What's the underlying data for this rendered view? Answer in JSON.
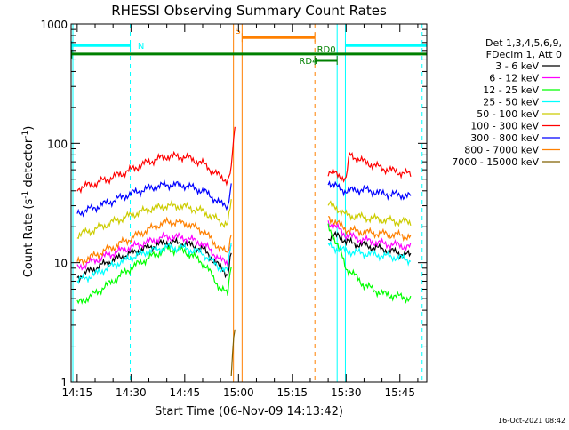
{
  "chart_data": {
    "type": "line",
    "title": "RHESSI Observing Summary Count Rates",
    "xlabel": "Start Time (06-Nov-09 14:13:42)",
    "ylabel_main": "Count Rate (s",
    "ylabel_sup1": "-1",
    "ylabel_mid": " detector",
    "ylabel_sup2": "-1",
    "ylabel_end": ")",
    "yscale": "log",
    "ylim": [
      1,
      1000
    ],
    "xlim_minutes": [
      -1.7,
      97.5
    ],
    "x_ticks": [
      {
        "label": "14:15",
        "min": 0
      },
      {
        "label": "14:30",
        "min": 15
      },
      {
        "label": "14:45",
        "min": 30
      },
      {
        "label": "15:00",
        "min": 45
      },
      {
        "label": "15:15",
        "min": 60
      },
      {
        "label": "15:30",
        "min": 75
      },
      {
        "label": "15:45",
        "min": 90
      }
    ],
    "y_ticks": [
      {
        "label": "1000",
        "value": 1000
      },
      {
        "label": "100",
        "value": 100
      },
      {
        "label": "10",
        "value": 10
      },
      {
        "label": "1",
        "value": 1
      }
    ],
    "legend_header": [
      "Det 1,3,4,5,6,9,",
      "FDecim 1, Att 0"
    ],
    "series": [
      {
        "name": "3 - 6 keV",
        "color": "#000000",
        "x": [
          0,
          5,
          10,
          15,
          20,
          25,
          30,
          35,
          38,
          40,
          42,
          43,
          63,
          70,
          73,
          75,
          80,
          85,
          90,
          93
        ],
        "values": [
          7.5,
          9,
          10.5,
          12,
          13.5,
          14.8,
          14.5,
          13,
          10.5,
          9,
          8,
          12,
          null,
          16,
          17,
          15,
          14,
          13,
          12,
          11.5
        ]
      },
      {
        "name": "6 - 12 keV",
        "color": "#ff00ff",
        "x": [
          0,
          5,
          10,
          15,
          20,
          25,
          30,
          35,
          38,
          40,
          42,
          43,
          63,
          70,
          73,
          75,
          80,
          85,
          90,
          93
        ],
        "values": [
          9,
          10.5,
          12,
          13.5,
          15,
          16.5,
          16.2,
          14.5,
          12,
          10.5,
          10,
          15,
          null,
          22,
          19,
          17,
          15.5,
          14.5,
          14,
          13.5
        ]
      },
      {
        "name": "12 - 25 keV",
        "color": "#00ff00",
        "x": [
          0,
          5,
          10,
          15,
          20,
          25,
          30,
          35,
          38,
          40,
          42,
          43,
          63,
          70,
          73,
          75,
          80,
          85,
          90,
          93
        ],
        "values": [
          4.5,
          5.5,
          7,
          9,
          11,
          13,
          12.5,
          10,
          7.5,
          6,
          5.5,
          10,
          null,
          20,
          13,
          9,
          6.5,
          5.5,
          5.2,
          5
        ]
      },
      {
        "name": "25 - 50 keV",
        "color": "#00ffff",
        "x": [
          0,
          5,
          10,
          15,
          20,
          25,
          30,
          35,
          38,
          40,
          42,
          43,
          63,
          70,
          73,
          75,
          80,
          85,
          90,
          93
        ],
        "values": [
          7,
          8,
          9.5,
          11,
          12.5,
          13.5,
          13.2,
          12,
          10,
          9,
          8.5,
          15,
          null,
          14,
          13,
          12.5,
          12,
          11.5,
          11,
          10.5
        ]
      },
      {
        "name": "50 - 100 keV",
        "color": "#cccc00",
        "x": [
          0,
          5,
          10,
          15,
          20,
          25,
          30,
          35,
          38,
          40,
          42,
          43,
          63,
          70,
          73,
          75,
          80,
          85,
          90,
          93
        ],
        "values": [
          17,
          19,
          22,
          25,
          28,
          30,
          29.5,
          27,
          24,
          22,
          21,
          32,
          null,
          31,
          28,
          25,
          24,
          23,
          22,
          22
        ]
      },
      {
        "name": "100 - 300 keV",
        "color": "#ff0000",
        "x": [
          0,
          5,
          10,
          15,
          20,
          25,
          30,
          35,
          38,
          40,
          42,
          43,
          44,
          63,
          70,
          73,
          75,
          76,
          80,
          85,
          90,
          93
        ],
        "values": [
          42,
          46,
          52,
          60,
          70,
          78,
          77,
          68,
          58,
          52,
          49,
          60,
          130,
          null,
          58,
          54,
          50,
          80,
          70,
          62,
          57,
          55
        ]
      },
      {
        "name": "300 - 800 keV",
        "color": "#0000ff",
        "x": [
          0,
          5,
          10,
          15,
          20,
          25,
          30,
          35,
          38,
          40,
          42,
          43,
          63,
          70,
          73,
          75,
          80,
          85,
          90,
          93
        ],
        "values": [
          26,
          29,
          33,
          38,
          42,
          45,
          44.5,
          40,
          35,
          31,
          30,
          45,
          null,
          48,
          42,
          40,
          41,
          38,
          37,
          36
        ]
      },
      {
        "name": "800 - 7000 keV",
        "color": "#ff8000",
        "x": [
          0,
          5,
          10,
          15,
          20,
          25,
          30,
          35,
          38,
          40,
          42,
          43,
          63,
          70,
          73,
          75,
          80,
          85,
          90,
          93
        ],
        "values": [
          10,
          11.5,
          13.5,
          16,
          19,
          22,
          21.5,
          18.5,
          15,
          13,
          12,
          18,
          null,
          24,
          21,
          19,
          18,
          17.5,
          17,
          16.5
        ]
      },
      {
        "name": "7000 - 15000 keV",
        "color": "#806000",
        "x": [
          43,
          44
        ],
        "values": [
          1.2,
          3
        ]
      }
    ],
    "annotations": [
      {
        "label": "N",
        "color": "#00ffff",
        "segments": [
          [
            -1.5,
            14.8
          ],
          [
            74.8,
            97.5
          ]
        ],
        "level": 660
      },
      {
        "label": "S",
        "color": "#ff8000",
        "segments": [
          [
            46,
            66.3
          ]
        ],
        "level": 770
      },
      {
        "label": "RD0",
        "color": "#008000",
        "segments": [
          [
            -1.5,
            97.5
          ]
        ],
        "level": 560
      },
      {
        "label": "RD4",
        "color": "#008000",
        "segments": [
          [
            66.3,
            72.5
          ]
        ],
        "level": 495
      }
    ],
    "vertical_markers": [
      {
        "min": -1.2,
        "style": "solid",
        "color": "#00ffff"
      },
      {
        "min": 14.8,
        "style": "dashed",
        "color": "#00ffff"
      },
      {
        "min": 43.6,
        "style": "solid",
        "color": "#ff8000"
      },
      {
        "min": 46,
        "style": "solid",
        "color": "#ff8000"
      },
      {
        "min": 66.3,
        "style": "dashed",
        "color": "#ff8000"
      },
      {
        "min": 72.5,
        "style": "solid",
        "color": "#00ffff"
      },
      {
        "min": 74.8,
        "style": "solid",
        "color": "#00ffff"
      },
      {
        "min": 96.2,
        "style": "dashed",
        "color": "#00ffff"
      }
    ],
    "timestamp": "16-Oct-2021 08:42"
  }
}
